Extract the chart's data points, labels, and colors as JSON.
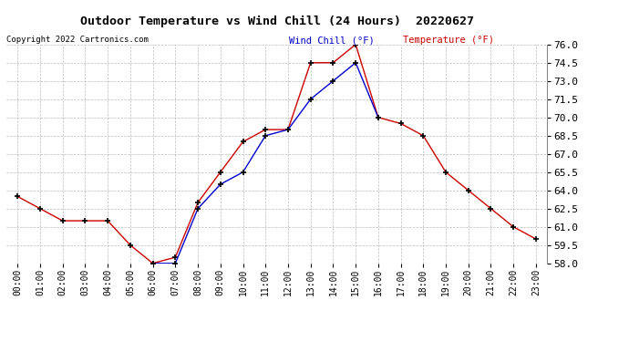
{
  "title": "Outdoor Temperature vs Wind Chill (24 Hours)  20220627",
  "copyright": "Copyright 2022 Cartronics.com",
  "legend_wind_chill": "Wind Chill (°F)",
  "legend_temperature": "Temperature (°F)",
  "hours": [
    0,
    1,
    2,
    3,
    4,
    5,
    6,
    7,
    8,
    9,
    10,
    11,
    12,
    13,
    14,
    15,
    16,
    17,
    18,
    19,
    20,
    21,
    22,
    23
  ],
  "temperature": [
    63.5,
    62.5,
    61.5,
    61.5,
    61.5,
    59.5,
    58.0,
    58.5,
    63.0,
    65.5,
    68.0,
    69.0,
    69.0,
    74.5,
    74.5,
    76.0,
    70.0,
    69.5,
    68.5,
    65.5,
    64.0,
    62.5,
    61.0,
    60.0
  ],
  "wind_chill": [
    null,
    null,
    null,
    null,
    null,
    null,
    58.0,
    58.0,
    62.5,
    64.5,
    65.5,
    68.5,
    69.0,
    71.5,
    73.0,
    74.5,
    70.0,
    null,
    null,
    null,
    null,
    null,
    null,
    null
  ],
  "ylim": [
    58.0,
    76.0
  ],
  "yticks": [
    58.0,
    59.5,
    61.0,
    62.5,
    64.0,
    65.5,
    67.0,
    68.5,
    70.0,
    71.5,
    73.0,
    74.5,
    76.0
  ],
  "temp_color": "#cc0000",
  "wind_chill_color": "#0000cc",
  "background_color": "#ffffff",
  "grid_color": "#bbbbbb",
  "marker": "+",
  "marker_color": "#000000",
  "marker_size": 5,
  "marker_linewidth": 1.2,
  "line_width": 1.0
}
